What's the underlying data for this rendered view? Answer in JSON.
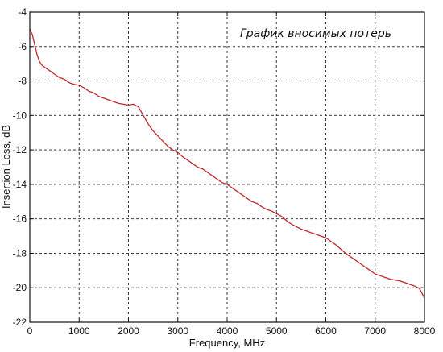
{
  "chart_data": {
    "type": "line",
    "title": "График вносимых потерь",
    "xlabel": "Frequency, MHz",
    "ylabel": "Insertion Loss, dB",
    "xlim": [
      0,
      8000
    ],
    "ylim": [
      -22,
      -4
    ],
    "xticks": [
      0,
      1000,
      2000,
      3000,
      4000,
      5000,
      6000,
      7000,
      8000
    ],
    "yticks": [
      -4,
      -6,
      -8,
      -10,
      -12,
      -14,
      -16,
      -18,
      -20,
      -22
    ],
    "xtick_labels": [
      "0",
      "1000",
      "2000",
      "3000",
      "4000",
      "5000",
      "6000",
      "7000",
      "8000"
    ],
    "ytick_labels": [
      "-4",
      "-6",
      "-8",
      "-10",
      "-12",
      "-14",
      "-16",
      "-18",
      "-20",
      "-22"
    ],
    "grid": true,
    "grid_style": "dashed",
    "line_color": "#c0282b",
    "series": [
      {
        "x": [
          0,
          50,
          100,
          150,
          200,
          250,
          300,
          350,
          400,
          500,
          600,
          700,
          800,
          900,
          1000,
          1100,
          1200,
          1300,
          1400,
          1500,
          1600,
          1700,
          1800,
          1900,
          2000,
          2100,
          2200,
          2300,
          2400,
          2500,
          2600,
          2700,
          2800,
          2900,
          3000,
          3100,
          3200,
          3300,
          3400,
          3500,
          3600,
          3700,
          3800,
          3900,
          4000,
          4100,
          4200,
          4300,
          4400,
          4500,
          4600,
          4700,
          4800,
          4900,
          5000,
          5100,
          5200,
          5300,
          5400,
          5500,
          5600,
          5700,
          5800,
          5900,
          6000,
          6100,
          6200,
          6300,
          6400,
          6500,
          6600,
          6700,
          6800,
          6900,
          7000,
          7100,
          7200,
          7300,
          7400,
          7500,
          7600,
          7700,
          7800,
          7900,
          8000
        ],
        "y": [
          -5.0,
          -5.3,
          -5.9,
          -6.5,
          -6.9,
          -7.1,
          -7.2,
          -7.3,
          -7.4,
          -7.6,
          -7.8,
          -7.9,
          -8.1,
          -8.2,
          -8.25,
          -8.4,
          -8.6,
          -8.7,
          -8.9,
          -9.0,
          -9.1,
          -9.2,
          -9.3,
          -9.35,
          -9.4,
          -9.35,
          -9.5,
          -10.0,
          -10.5,
          -10.9,
          -11.2,
          -11.5,
          -11.8,
          -12.0,
          -12.15,
          -12.4,
          -12.6,
          -12.8,
          -13.0,
          -13.1,
          -13.3,
          -13.5,
          -13.7,
          -13.9,
          -14.0,
          -14.2,
          -14.4,
          -14.6,
          -14.8,
          -15.0,
          -15.1,
          -15.3,
          -15.45,
          -15.55,
          -15.7,
          -15.85,
          -16.1,
          -16.3,
          -16.45,
          -16.6,
          -16.7,
          -16.8,
          -16.9,
          -17.0,
          -17.1,
          -17.3,
          -17.5,
          -17.75,
          -18.0,
          -18.2,
          -18.4,
          -18.6,
          -18.8,
          -19.0,
          -19.2,
          -19.3,
          -19.4,
          -19.5,
          -19.55,
          -19.6,
          -19.7,
          -19.8,
          -19.9,
          -20.05,
          -20.6
        ]
      }
    ]
  }
}
